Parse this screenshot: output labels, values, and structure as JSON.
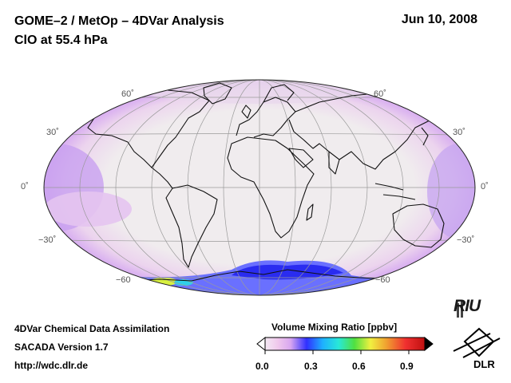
{
  "header": {
    "title": "GOME–2 / MetOp – 4DVar Analysis",
    "subtitle": "ClO at 55.4 hPa",
    "date": "Jun 10, 2008"
  },
  "map": {
    "projection": "Hammer-Aitoff (global)",
    "lat_labels": {
      "left": [
        "60˚",
        "30˚",
        "0˚",
        "−30˚",
        "−60"
      ],
      "right": [
        "60˚",
        "30˚",
        "0˚",
        "−30˚",
        "−60"
      ]
    }
  },
  "colorbar": {
    "title": "Volume Mixing Ratio [ppbv]",
    "ticks": [
      "0.0",
      "0.3",
      "0.6",
      "0.9"
    ],
    "min": 0.0,
    "max": 1.0,
    "colors": [
      "#f4eaf4",
      "#f0c8ec",
      "#d8a6f0",
      "#3030ff",
      "#1eb0ff",
      "#28e8d8",
      "#50e040",
      "#f0f040",
      "#f0a030",
      "#f03030",
      "#c01010"
    ]
  },
  "footer": {
    "line1": "4DVar Chemical Data Assimilation",
    "line2": "SACADA Version 1.7",
    "line3": "http://wdc.dlr.de"
  },
  "logos": {
    "riu": "RIU",
    "dlr": "DLR"
  }
}
